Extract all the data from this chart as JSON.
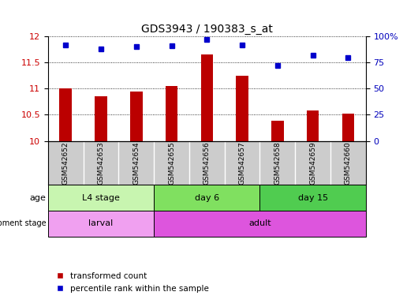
{
  "title": "GDS3943 / 190383_s_at",
  "samples": [
    "GSM542652",
    "GSM542653",
    "GSM542654",
    "GSM542655",
    "GSM542656",
    "GSM542657",
    "GSM542658",
    "GSM542659",
    "GSM542660"
  ],
  "transformed_counts": [
    11.0,
    10.85,
    10.95,
    11.05,
    11.65,
    11.25,
    10.38,
    10.58,
    10.52
  ],
  "percentile_ranks": [
    92,
    88,
    90,
    91,
    97,
    92,
    72,
    82,
    80
  ],
  "ylim_left": [
    10,
    12
  ],
  "ylim_right": [
    0,
    100
  ],
  "yticks_left": [
    10,
    10.5,
    11,
    11.5,
    12
  ],
  "yticks_right": [
    0,
    25,
    50,
    75,
    100
  ],
  "age_groups": [
    {
      "label": "L4 stage",
      "start": 0,
      "end": 3,
      "color": "#c8f5b0"
    },
    {
      "label": "day 6",
      "start": 3,
      "end": 6,
      "color": "#80e060"
    },
    {
      "label": "day 15",
      "start": 6,
      "end": 9,
      "color": "#50cc50"
    }
  ],
  "dev_groups": [
    {
      "label": "larval",
      "start": 0,
      "end": 3,
      "color": "#f0a0f0"
    },
    {
      "label": "adult",
      "start": 3,
      "end": 9,
      "color": "#dd55dd"
    }
  ],
  "bar_color": "#bb0000",
  "dot_color": "#0000cc",
  "tick_color_left": "#cc0000",
  "tick_color_right": "#0000bb",
  "sample_bg_color": "#cccccc",
  "bar_width": 0.35,
  "fig_width": 5.3,
  "fig_height": 3.84
}
